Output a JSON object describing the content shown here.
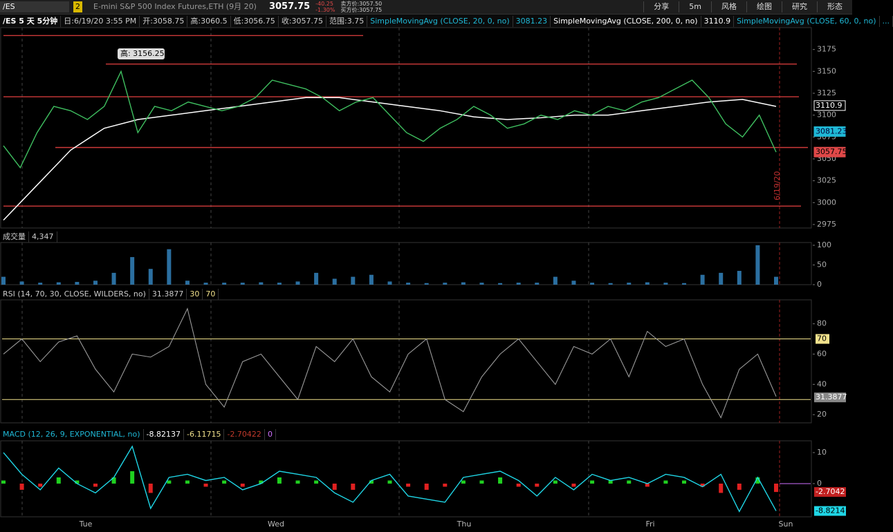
{
  "toolbar": {
    "symbol": "/ES",
    "link": "2",
    "description": "E-mini S&P 500 Index Futures,ETH (9月 20)",
    "last": "3057.75",
    "change": "-40.25",
    "change_pct": "-1.30%",
    "bid": "卖方价:3057.50",
    "ask": "买方价:3057.75",
    "buttons": [
      "分享",
      "5m",
      "风格",
      "绘图",
      "研究",
      "形态"
    ]
  },
  "price_panel": {
    "header": [
      "/ES 5 天 5分钟",
      "日:6/19/20 3:55 PM",
      "开:3058.75",
      "高:3060.5",
      "低:3056.75",
      "收:3057.75",
      "范围:3.75"
    ],
    "studies": [
      {
        "name": "SimpleMovingAvg (CLOSE, 20, 0, no)",
        "value": "3081.23"
      },
      {
        "name": "SimpleMovingAvg (CLOSE, 200, 0, no)",
        "value": "3110.9"
      },
      {
        "name": "SimpleMovingAvg (CLOSE, 60, 0, no)",
        "value": "..."
      }
    ],
    "annotation": "高: 3156.25",
    "date_marker": "6/19/20",
    "ylim": [
      2971,
      3200
    ],
    "yticks": [
      2975,
      3000,
      3025,
      3050,
      3075,
      3100,
      3125,
      3150,
      3175
    ],
    "axis_labels": [
      {
        "text": "3110.9",
        "color": "#ffffff"
      },
      {
        "text": "3081.23",
        "color": "#1fb8d6"
      },
      {
        "text": "3057.75",
        "color": "#e04848"
      }
    ],
    "levels": [
      3191,
      3158.4,
      3121,
      3063,
      2996
    ],
    "close": [
      3065,
      3040,
      3080,
      3110,
      3105,
      3095,
      3110,
      3150,
      3080,
      3110,
      3105,
      3115,
      3110,
      3105,
      3110,
      3120,
      3140,
      3135,
      3130,
      3120,
      3105,
      3115,
      3120,
      3100,
      3080,
      3070,
      3085,
      3095,
      3110,
      3100,
      3085,
      3090,
      3100,
      3095,
      3105,
      3100,
      3110,
      3105,
      3115,
      3120,
      3130,
      3140,
      3120,
      3090,
      3075,
      3100,
      3057.75
    ],
    "sma200": [
      2980,
      3020,
      3060,
      3085,
      3095,
      3100,
      3105,
      3110,
      3115,
      3120,
      3120,
      3115,
      3110,
      3105,
      3098,
      3095,
      3097,
      3100,
      3100,
      3105,
      3110,
      3115,
      3118,
      3110
    ]
  },
  "volume_panel": {
    "title": "成交量",
    "value": "4,347",
    "ylim": [
      0,
      107
    ],
    "yticks": [
      0,
      50,
      100
    ],
    "values": [
      20,
      8,
      5,
      6,
      7,
      10,
      30,
      70,
      40,
      90,
      10,
      5,
      5,
      5,
      6,
      5,
      8,
      30,
      15,
      20,
      25,
      8,
      5,
      4,
      5,
      6,
      5,
      4,
      5,
      5,
      20,
      10,
      5,
      4,
      5,
      6,
      5,
      4,
      25,
      30,
      35,
      100,
      20
    ]
  },
  "rsi_panel": {
    "title": "RSI (14, 70, 30, CLOSE, WILDERS, no)",
    "value": "31.3877",
    "oversold": 30,
    "overbought": 70,
    "ylim": [
      14.6,
      95.8
    ],
    "yticks": [
      20,
      40,
      60,
      80
    ],
    "values": [
      60,
      70,
      55,
      68,
      72,
      50,
      35,
      60,
      58,
      65,
      90,
      40,
      25,
      55,
      60,
      45,
      30,
      65,
      55,
      70,
      45,
      35,
      60,
      70,
      30,
      22,
      45,
      60,
      70,
      55,
      40,
      65,
      60,
      70,
      45,
      75,
      65,
      70,
      40,
      18,
      50,
      60,
      32
    ]
  },
  "macd_panel": {
    "title": "MACD (12, 26, 9, EXPONENTIAL, no)",
    "values": [
      "-8.82137",
      "-6.11715",
      "-2.70422",
      "0"
    ],
    "ylim": [
      -10.7,
      13.8
    ],
    "yticks": [
      0,
      10
    ],
    "axis_labels": [
      "-2.7042",
      "-8.8214"
    ],
    "macd": [
      10,
      3,
      -2,
      5,
      0,
      -3,
      2,
      12,
      -8,
      2,
      3,
      1,
      2,
      -2,
      0,
      4,
      3,
      2,
      -3,
      -6,
      1,
      3,
      -4,
      -5,
      -6,
      2,
      3,
      4,
      1,
      -4,
      2,
      -2,
      3,
      1,
      2,
      0,
      3,
      2,
      -1,
      3,
      -9,
      2,
      -8.8
    ],
    "hist": [
      1,
      -2,
      -1,
      2,
      1,
      -1,
      2,
      4,
      -3,
      1,
      1,
      -1,
      1,
      -1,
      1,
      2,
      1,
      1,
      -2,
      -2,
      1,
      1,
      -1,
      -2,
      -1,
      1,
      1,
      2,
      -1,
      -1,
      1,
      -1,
      1,
      1,
      1,
      -1,
      1,
      1,
      -1,
      -3,
      -2,
      2,
      -2.7
    ]
  },
  "x_labels": [
    "Tue",
    "Wed",
    "Thu",
    "Fri",
    "Sun"
  ]
}
